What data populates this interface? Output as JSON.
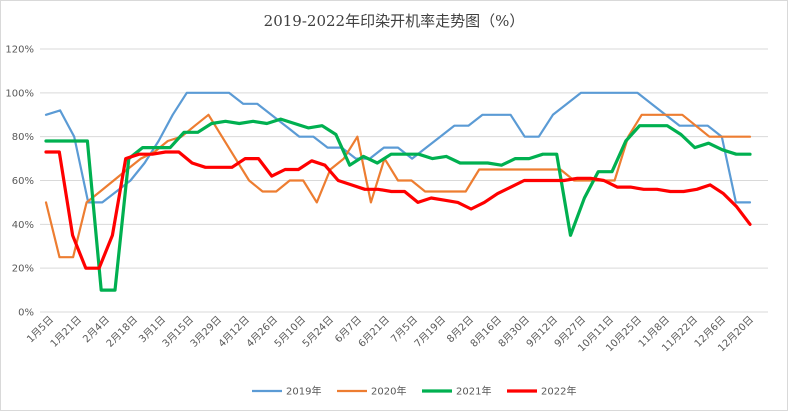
{
  "chart_data": {
    "type": "line",
    "title": "2019-2022年印染开机率走势图（%）",
    "xlabel": "",
    "ylabel": "",
    "ylim": [
      0,
      120
    ],
    "y_ticks": [
      "0%",
      "20%",
      "40%",
      "60%",
      "80%",
      "100%",
      "120%"
    ],
    "grid": true,
    "legend_position": "bottom",
    "x_tick_labels": [
      "1月5日",
      "1月21日",
      "2月4日",
      "2月18日",
      "3月1日",
      "3月15日",
      "3月29日",
      "4月12日",
      "4月26日",
      "5月10日",
      "5月24日",
      "6月7日",
      "6月21日",
      "7月5日",
      "7月19日",
      "8月2日",
      "8月16日",
      "8月30日",
      "9月12日",
      "9月27日",
      "10月11日",
      "10月25日",
      "11月8日",
      "11月22日",
      "12月6日",
      "12月20日"
    ],
    "series": [
      {
        "name": "2019年",
        "color": "#5b9bd5",
        "values": [
          90,
          92,
          80,
          50,
          50,
          55,
          60,
          68,
          78,
          90,
          100,
          100,
          100,
          100,
          95,
          95,
          90,
          85,
          80,
          80,
          75,
          75,
          70,
          70,
          75,
          75,
          70,
          75,
          80,
          85,
          85,
          90,
          90,
          90,
          80,
          80,
          90,
          95,
          100,
          100,
          100,
          100,
          100,
          95,
          90,
          85,
          85,
          85,
          80,
          50,
          50
        ]
      },
      {
        "name": "2020年",
        "color": "#ed7d31",
        "values": [
          50,
          25,
          25,
          50,
          55,
          60,
          65,
          70,
          73,
          78,
          80,
          85,
          90,
          80,
          70,
          60,
          55,
          55,
          60,
          60,
          50,
          65,
          70,
          80,
          50,
          70,
          60,
          60,
          55,
          55,
          55,
          55,
          65,
          65,
          65,
          65,
          65,
          65,
          65,
          60,
          60,
          60,
          60,
          80,
          90,
          90,
          90,
          90,
          85,
          80,
          80,
          80,
          80
        ]
      },
      {
        "name": "2021年",
        "color": "#00b050",
        "values": [
          78,
          78,
          78,
          78,
          10,
          10,
          70,
          75,
          75,
          75,
          82,
          82,
          86,
          87,
          86,
          87,
          86,
          88,
          86,
          84,
          85,
          81,
          67,
          71,
          68,
          72,
          72,
          72,
          70,
          71,
          68,
          68,
          68,
          67,
          70,
          70,
          72,
          72,
          35,
          52,
          64,
          64,
          78,
          85,
          85,
          85,
          81,
          75,
          77,
          74,
          72,
          72
        ]
      },
      {
        "name": "2022年",
        "color": "#ff0000",
        "values": [
          73,
          73,
          35,
          20,
          20,
          35,
          70,
          72,
          72,
          73,
          73,
          68,
          66,
          66,
          66,
          70,
          70,
          62,
          65,
          65,
          69,
          67,
          60,
          58,
          56,
          56,
          55,
          55,
          50,
          52,
          51,
          50,
          47,
          50,
          54,
          57,
          60,
          60,
          60,
          60,
          61,
          61,
          60,
          57,
          57,
          56,
          56,
          55,
          55,
          56,
          58,
          54,
          48,
          40
        ]
      }
    ]
  }
}
